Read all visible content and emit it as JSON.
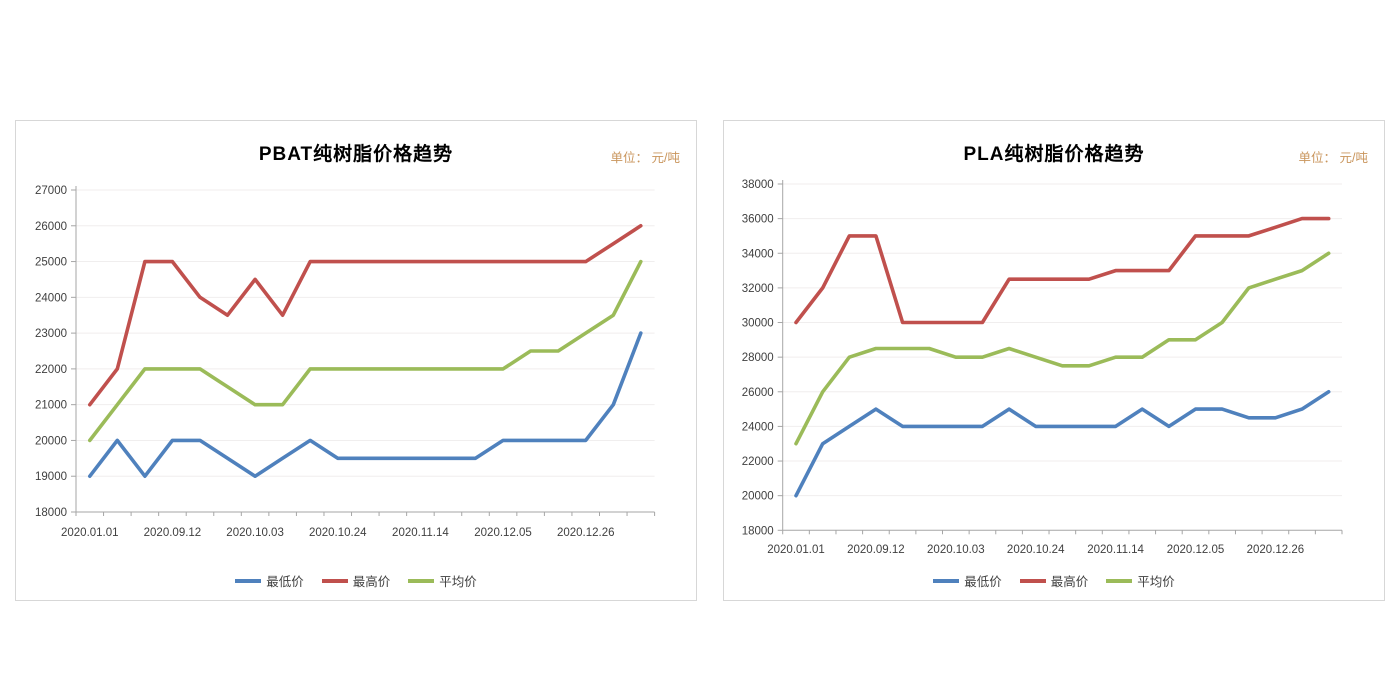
{
  "chart_data": [
    {
      "type": "line",
      "title": "PBAT纯树脂价格趋势",
      "unit_label": "单位：  元/吨",
      "y_axis": {
        "min": 18000,
        "max": 27000,
        "step": 1000,
        "tick_labels": [
          "18000",
          "19000",
          "20000",
          "21000",
          "22000",
          "23000",
          "24000",
          "25000",
          "26000",
          "27000"
        ]
      },
      "x_axis": {
        "n_points": 21,
        "labels": [
          "2020.01.01",
          "2020.09.12",
          "2020.10.03",
          "2020.10.24",
          "2020.11.14",
          "2020.12.05",
          "2020.12.26"
        ],
        "label_point_indices": [
          0,
          3,
          6,
          9,
          12,
          15,
          18
        ]
      },
      "grid": true,
      "legend_position": "bottom",
      "series": [
        {
          "name": "最低价",
          "color": "#4F81BD",
          "values": [
            19000,
            20000,
            19000,
            20000,
            20000,
            19500,
            19000,
            19500,
            20000,
            19500,
            19500,
            19500,
            19500,
            19500,
            19500,
            20000,
            20000,
            20000,
            20000,
            21000,
            23000
          ]
        },
        {
          "name": "最高价",
          "color": "#C0504D",
          "values": [
            21000,
            22000,
            25000,
            25000,
            24000,
            23500,
            24500,
            23500,
            25000,
            25000,
            25000,
            25000,
            25000,
            25000,
            25000,
            25000,
            25000,
            25000,
            25000,
            25500,
            26000
          ]
        },
        {
          "name": "平均价",
          "color": "#9BBB59",
          "values": [
            20000,
            21000,
            22000,
            22000,
            22000,
            21500,
            21000,
            21000,
            22000,
            22000,
            22000,
            22000,
            22000,
            22000,
            22000,
            22000,
            22500,
            22500,
            23000,
            23500,
            25000
          ]
        }
      ]
    },
    {
      "type": "line",
      "title": "PLA纯树脂价格趋势",
      "unit_label": "单位：  元/吨",
      "y_axis": {
        "min": 18000,
        "max": 38000,
        "step": 2000,
        "tick_labels": [
          "18000",
          "20000",
          "22000",
          "24000",
          "26000",
          "28000",
          "30000",
          "32000",
          "34000",
          "36000",
          "38000"
        ]
      },
      "x_axis": {
        "n_points": 21,
        "labels": [
          "2020.01.01",
          "2020.09.12",
          "2020.10.03",
          "2020.10.24",
          "2020.11.14",
          "2020.12.05",
          "2020.12.26"
        ],
        "label_point_indices": [
          0,
          3,
          6,
          9,
          12,
          15,
          18
        ]
      },
      "grid": true,
      "legend_position": "bottom",
      "series": [
        {
          "name": "最低价",
          "color": "#4F81BD",
          "values": [
            20000,
            23000,
            24000,
            25000,
            24000,
            24000,
            24000,
            24000,
            25000,
            24000,
            24000,
            24000,
            24000,
            25000,
            24000,
            25000,
            25000,
            24500,
            24500,
            25000,
            26000
          ]
        },
        {
          "name": "最高价",
          "color": "#C0504D",
          "values": [
            30000,
            32000,
            35000,
            35000,
            30000,
            30000,
            30000,
            30000,
            32500,
            32500,
            32500,
            32500,
            33000,
            33000,
            33000,
            35000,
            35000,
            35000,
            35500,
            36000,
            36000
          ]
        },
        {
          "name": "平均价",
          "color": "#9BBB59",
          "values": [
            23000,
            26000,
            28000,
            28500,
            28500,
            28500,
            28000,
            28000,
            28500,
            28000,
            27500,
            27500,
            28000,
            28000,
            29000,
            29000,
            30000,
            32000,
            32500,
            33000,
            34000
          ]
        }
      ]
    }
  ],
  "style": {
    "grid_color": "#f0eeee",
    "axis_color": "#a6a6a6",
    "tick_text_color": "#404040"
  }
}
